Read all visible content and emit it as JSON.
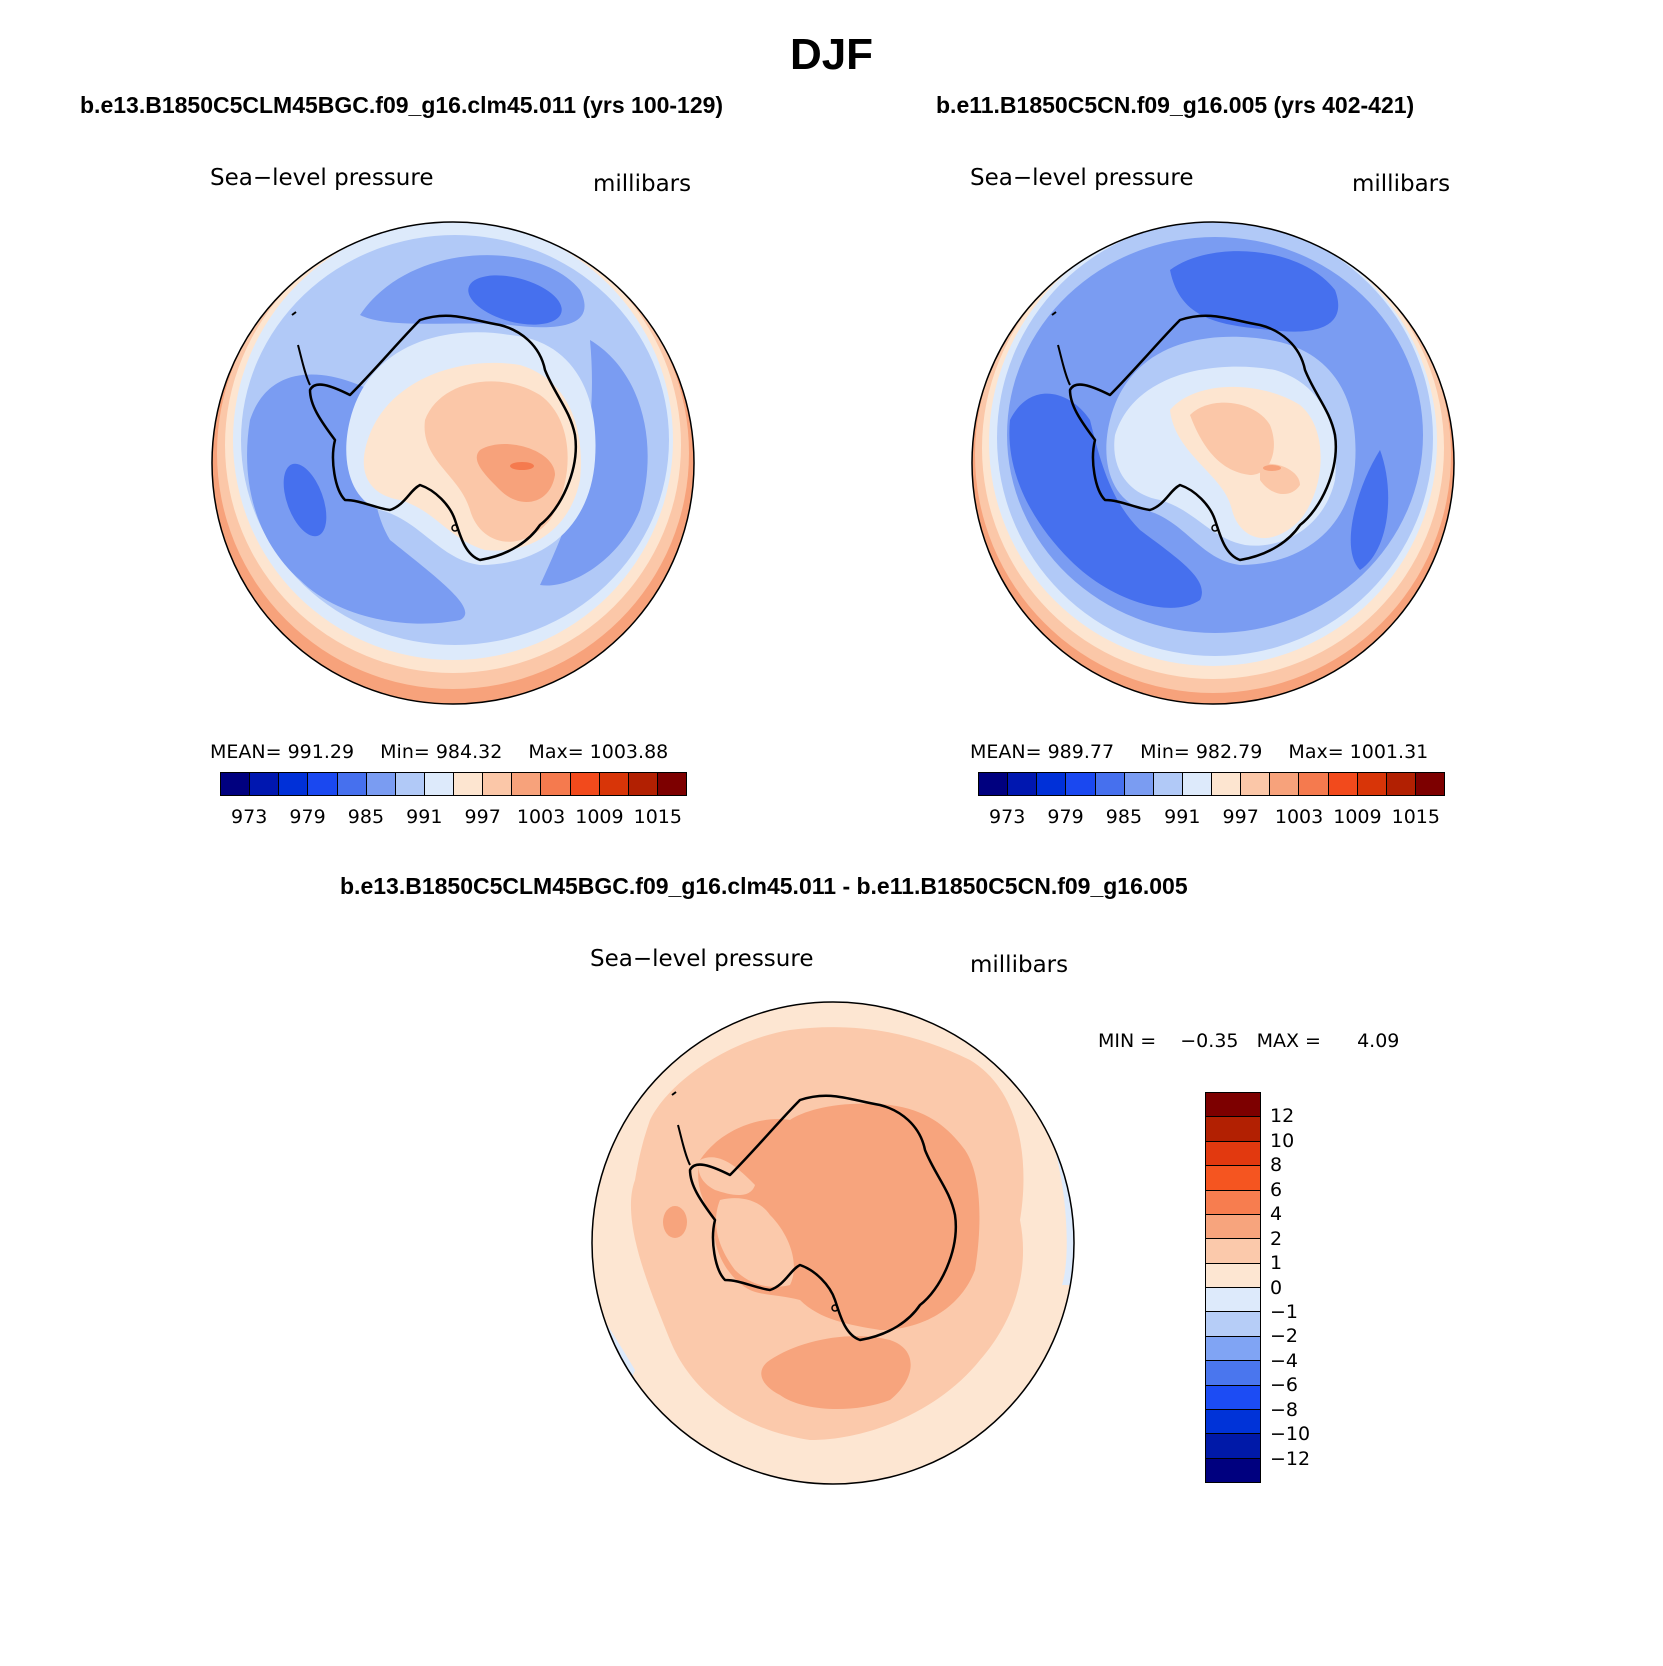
{
  "season": "DJF",
  "panels": {
    "case1": {
      "title": "b.e13.B1850C5CLM45BGC.f09_g16.clm45.011 (yrs 100-129)",
      "field": "Sea−level pressure",
      "units": "millibars",
      "mean_label": "MEAN=",
      "mean": "991.29",
      "min_label": "Min=",
      "min": "984.32",
      "max_label": "Max=",
      "max": "1003.88"
    },
    "case2": {
      "title": "b.e11.B1850C5CN.f09_g16.005 (yrs 402-421)",
      "field": "Sea−level pressure",
      "units": "millibars",
      "mean_label": "MEAN=",
      "mean": "989.77",
      "min_label": "Min=",
      "min": "982.79",
      "max_label": "Max=",
      "max": "1001.31"
    },
    "diff": {
      "title": "b.e13.B1850C5CLM45BGC.f09_g16.clm45.011 - b.e11.B1850C5CN.f09_g16.005",
      "field": "Sea−level pressure",
      "units": "millibars",
      "min_label": "MIN =",
      "min": "−0.35",
      "max_label": "MAX =",
      "max": "4.09"
    }
  },
  "colorbar_abs": {
    "colors": [
      "#00007f",
      "#0017b0",
      "#0030d8",
      "#1a48f0",
      "#4670ee",
      "#7a9cf2",
      "#b1c9f7",
      "#ddeafb",
      "#fde5d0",
      "#fbc7a8",
      "#f7a27b",
      "#f57a4e",
      "#f24a1c",
      "#d83508",
      "#b22002",
      "#7d0000"
    ],
    "tick_labels": [
      "973",
      "979",
      "985",
      "991",
      "997",
      "1003",
      "1009",
      "1015"
    ]
  },
  "colorbar_diff": {
    "colors_top_to_bottom": [
      "#7d0000",
      "#b22002",
      "#e2390f",
      "#f55520",
      "#f77d4f",
      "#f7a47d",
      "#fbc9ab",
      "#fde6d2",
      "#ddeafb",
      "#b6cdf7",
      "#80a4f4",
      "#4a76ee",
      "#1c4cf4",
      "#0033d8",
      "#0019a8",
      "#00007f"
    ],
    "tick_labels": [
      "12",
      "10",
      "8",
      "6",
      "4",
      "2",
      "1",
      "0",
      "−1",
      "−2",
      "−4",
      "−6",
      "−8",
      "−10",
      "−12"
    ]
  }
}
